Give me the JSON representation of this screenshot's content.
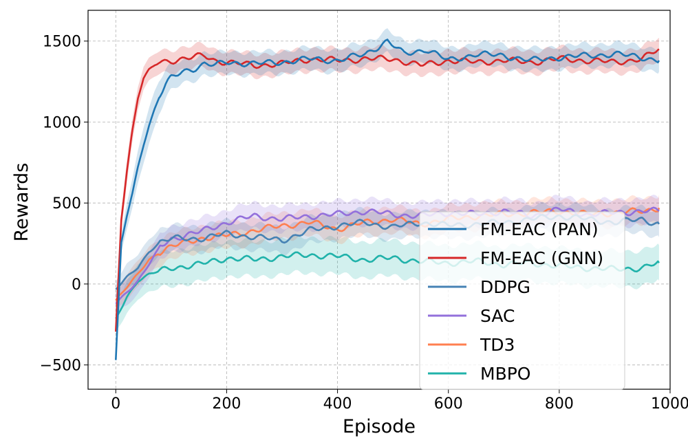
{
  "chart_data": {
    "type": "line",
    "title": "",
    "xlabel": "Episode",
    "ylabel": "Rewards",
    "xlim": [
      -50,
      1000
    ],
    "ylim": [
      -650,
      1690
    ],
    "xticks": [
      0,
      200,
      400,
      600,
      800,
      1000
    ],
    "yticks": [
      -500,
      0,
      500,
      1000,
      1500
    ],
    "xtick_labels": [
      "0",
      "200",
      "400",
      "600",
      "800",
      "1000"
    ],
    "ytick_labels": [
      "−500",
      "0",
      "500",
      "1000",
      "1500"
    ],
    "grid": true,
    "legend_position": "lower-right",
    "series": [
      {
        "name": "FM-EAC (PAN)",
        "color": "#1f77b4",
        "x": [
          0,
          10,
          20,
          30,
          40,
          50,
          60,
          70,
          80,
          90,
          100,
          120,
          140,
          160,
          180,
          200,
          250,
          300,
          350,
          400,
          450,
          490,
          520,
          560,
          600,
          650,
          700,
          750,
          800,
          850,
          900,
          950,
          980
        ],
        "y": [
          -470,
          250,
          420,
          560,
          720,
          860,
          980,
          1080,
          1170,
          1230,
          1270,
          1310,
          1330,
          1360,
          1350,
          1370,
          1360,
          1370,
          1390,
          1380,
          1420,
          1500,
          1420,
          1450,
          1380,
          1420,
          1410,
          1380,
          1400,
          1410,
          1420,
          1400,
          1380
        ],
        "band": [
          0,
          60,
          80,
          90,
          100,
          110,
          110,
          110,
          100,
          90,
          80,
          70,
          70,
          70,
          70,
          70,
          70,
          70,
          70,
          70,
          70,
          70,
          70,
          70,
          70,
          70,
          70,
          70,
          70,
          70,
          70,
          70,
          70
        ]
      },
      {
        "name": "FM-EAC (GNN)",
        "color": "#d62728",
        "x": [
          0,
          10,
          20,
          30,
          40,
          50,
          60,
          70,
          80,
          100,
          120,
          140,
          160,
          180,
          200,
          250,
          300,
          350,
          400,
          450,
          500,
          550,
          600,
          650,
          700,
          750,
          800,
          850,
          900,
          950,
          980
        ],
        "y": [
          -300,
          400,
          700,
          950,
          1150,
          1270,
          1320,
          1350,
          1370,
          1380,
          1390,
          1400,
          1410,
          1380,
          1370,
          1350,
          1360,
          1390,
          1380,
          1390,
          1390,
          1350,
          1380,
          1370,
          1380,
          1370,
          1390,
          1380,
          1370,
          1390,
          1450
        ],
        "band": [
          0,
          60,
          70,
          70,
          70,
          70,
          70,
          70,
          70,
          70,
          70,
          70,
          70,
          70,
          70,
          70,
          70,
          70,
          70,
          70,
          70,
          70,
          70,
          70,
          70,
          70,
          70,
          70,
          70,
          70,
          70
        ]
      },
      {
        "name": "DDPG",
        "color": "#4682b4",
        "x": [
          0,
          20,
          40,
          60,
          80,
          100,
          150,
          200,
          250,
          300,
          350,
          400,
          450,
          500,
          550,
          600,
          650,
          700,
          750,
          800,
          850,
          900,
          950,
          980
        ],
        "y": [
          -30,
          40,
          100,
          200,
          260,
          280,
          280,
          310,
          290,
          270,
          330,
          360,
          380,
          350,
          380,
          360,
          370,
          380,
          400,
          420,
          400,
          380,
          400,
          370
        ],
        "band": [
          50,
          80,
          80,
          80,
          80,
          80,
          80,
          80,
          80,
          80,
          80,
          80,
          80,
          80,
          80,
          80,
          80,
          80,
          80,
          80,
          80,
          80,
          80,
          80
        ]
      },
      {
        "name": "SAC",
        "color": "#9370db",
        "x": [
          0,
          20,
          40,
          60,
          80,
          100,
          150,
          200,
          250,
          300,
          350,
          400,
          450,
          500,
          550,
          600,
          650,
          700,
          750,
          800,
          850,
          900,
          950,
          980
        ],
        "y": [
          -120,
          -50,
          20,
          120,
          230,
          280,
          320,
          380,
          420,
          400,
          420,
          430,
          450,
          430,
          420,
          440,
          430,
          450,
          420,
          460,
          430,
          440,
          450,
          450
        ],
        "band": [
          60,
          80,
          80,
          80,
          80,
          80,
          80,
          80,
          80,
          80,
          80,
          80,
          80,
          80,
          80,
          80,
          80,
          80,
          80,
          80,
          80,
          80,
          80,
          80
        ]
      },
      {
        "name": "TD3",
        "color": "#ff7f50",
        "x": [
          0,
          20,
          40,
          60,
          80,
          100,
          150,
          200,
          250,
          300,
          350,
          400,
          450,
          500,
          550,
          600,
          650,
          700,
          750,
          800,
          850,
          900,
          950,
          980
        ],
        "y": [
          -100,
          -20,
          60,
          150,
          200,
          230,
          280,
          300,
          330,
          360,
          380,
          340,
          380,
          400,
          370,
          400,
          420,
          430,
          440,
          450,
          430,
          440,
          450,
          470
        ],
        "band": [
          60,
          80,
          80,
          80,
          80,
          80,
          80,
          80,
          80,
          80,
          80,
          80,
          80,
          80,
          80,
          80,
          80,
          80,
          80,
          80,
          80,
          80,
          80,
          80
        ]
      },
      {
        "name": "MBPO",
        "color": "#20b2aa",
        "x": [
          0,
          20,
          40,
          60,
          80,
          100,
          150,
          200,
          250,
          300,
          350,
          400,
          450,
          500,
          550,
          600,
          650,
          700,
          750,
          800,
          850,
          900,
          950,
          980
        ],
        "y": [
          -220,
          -80,
          20,
          60,
          80,
          100,
          120,
          160,
          150,
          170,
          180,
          170,
          150,
          160,
          140,
          130,
          140,
          120,
          130,
          110,
          100,
          90,
          100,
          130
        ],
        "band": [
          80,
          100,
          110,
          110,
          110,
          110,
          110,
          110,
          110,
          110,
          110,
          110,
          110,
          110,
          110,
          110,
          110,
          110,
          110,
          110,
          110,
          110,
          110,
          110
        ]
      }
    ]
  }
}
